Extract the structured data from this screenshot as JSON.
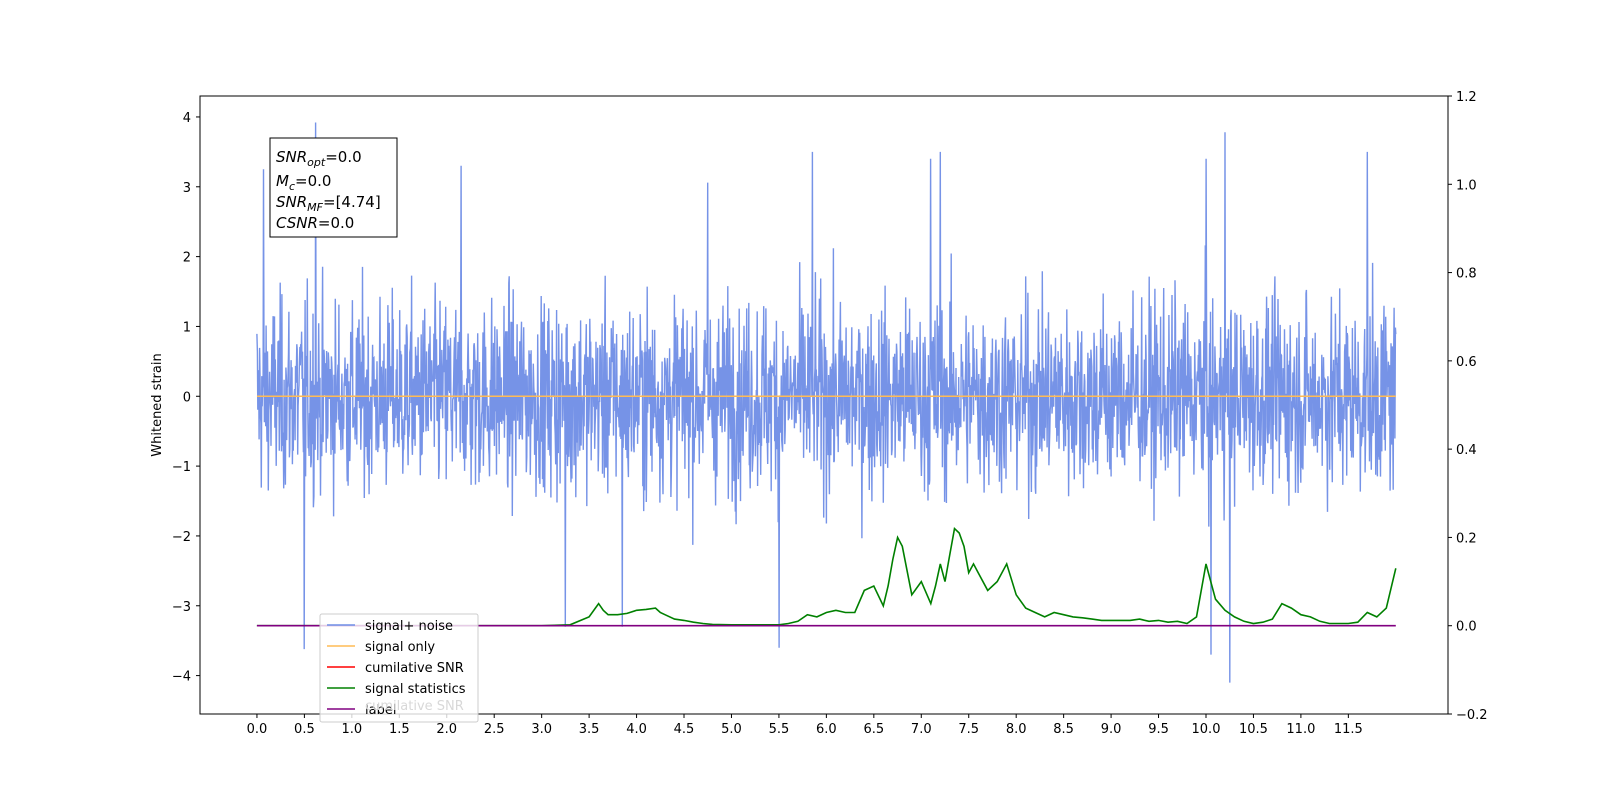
{
  "chart_data": {
    "type": "line",
    "ylabel": "Whitened strain",
    "xlim": [
      -0.6,
      12.55
    ],
    "ylim": [
      -4.55,
      4.3
    ],
    "ylim_right": [
      -0.2,
      1.2
    ],
    "x_ticks": [
      "0.0",
      "0.5",
      "1.0",
      "1.5",
      "2.0",
      "2.5",
      "3.0",
      "3.5",
      "4.0",
      "4.5",
      "5.0",
      "5.5",
      "6.0",
      "6.5",
      "7.0",
      "7.5",
      "8.0",
      "8.5",
      "9.0",
      "9.5",
      "10.0",
      "10.5",
      "11.0",
      "11.5"
    ],
    "y_ticks_left": [
      "4",
      "3",
      "2",
      "1",
      "0",
      "−1",
      "−2",
      "−3",
      "−4"
    ],
    "y_ticks_right": [
      "1.2",
      "1.0",
      "0.8",
      "0.6",
      "0.4",
      "0.2",
      "0.0",
      "−0.2"
    ],
    "stats_box": {
      "snr_opt_base": "SNR",
      "snr_opt_sub": "opt",
      "snr_opt_value": "=0.0",
      "mc_base": "M",
      "mc_sub": "c",
      "mc_value": "=0.0",
      "snr_mf_base": "SNR",
      "snr_mf_sub": "MF",
      "snr_mf_value": "=[4.74]",
      "csnr_base": "CSNR",
      "csnr_value": "=0.0"
    },
    "series": [
      {
        "name": "signal+ noise",
        "color": "#6f8de6",
        "axis": "left",
        "x_range": [
          0.0,
          12.0
        ],
        "peaks": [
          [
            0.07,
            3.25
          ],
          [
            0.5,
            -3.62
          ],
          [
            0.62,
            3.92
          ],
          [
            2.15,
            3.3
          ],
          [
            3.25,
            -3.3
          ],
          [
            3.85,
            -3.3
          ],
          [
            4.75,
            3.06
          ],
          [
            5.5,
            -3.6
          ],
          [
            5.85,
            3.5
          ],
          [
            7.2,
            3.5
          ],
          [
            7.1,
            3.4
          ],
          [
            10.0,
            3.4
          ],
          [
            10.05,
            -3.7
          ],
          [
            10.2,
            3.78
          ],
          [
            10.25,
            -4.1
          ],
          [
            11.7,
            3.5
          ]
        ]
      },
      {
        "name": "signal only",
        "color": "#ffbb55",
        "axis": "left",
        "x_range": [
          0.0,
          12.0
        ],
        "value": 0.0
      },
      {
        "name": "cumilative SNR",
        "color": "#ff0000",
        "axis": "right",
        "x": [],
        "y": []
      },
      {
        "name": "signal statistics",
        "color": "#008000",
        "axis": "right",
        "x": [
          0.0,
          0.5,
          1.0,
          1.5,
          2.0,
          2.5,
          3.0,
          3.3,
          3.5,
          3.6,
          3.65,
          3.7,
          3.8,
          3.9,
          4.0,
          4.1,
          4.2,
          4.25,
          4.3,
          4.4,
          4.5,
          4.6,
          4.7,
          4.8,
          5.0,
          5.5,
          5.6,
          5.7,
          5.8,
          5.9,
          6.0,
          6.1,
          6.2,
          6.3,
          6.4,
          6.5,
          6.6,
          6.65,
          6.7,
          6.75,
          6.8,
          6.9,
          7.0,
          7.1,
          7.15,
          7.2,
          7.25,
          7.3,
          7.35,
          7.4,
          7.45,
          7.5,
          7.55,
          7.6,
          7.7,
          7.8,
          7.9,
          8.0,
          8.1,
          8.2,
          8.3,
          8.4,
          8.5,
          8.6,
          8.7,
          8.8,
          8.9,
          9.0,
          9.2,
          9.3,
          9.4,
          9.5,
          9.6,
          9.7,
          9.8,
          9.9,
          10.0,
          10.1,
          10.2,
          10.3,
          10.4,
          10.5,
          10.6,
          10.7,
          10.8,
          10.9,
          11.0,
          11.1,
          11.2,
          11.3,
          11.5,
          11.6,
          11.7,
          11.8,
          11.9,
          12.0
        ],
        "y": [
          0.0,
          0.0,
          0.0,
          0.0,
          0.0,
          0.0,
          0.0,
          0.002,
          0.02,
          0.05,
          0.035,
          0.025,
          0.025,
          0.028,
          0.035,
          0.037,
          0.04,
          0.03,
          0.025,
          0.015,
          0.012,
          0.008,
          0.005,
          0.003,
          0.002,
          0.002,
          0.005,
          0.01,
          0.025,
          0.02,
          0.03,
          0.035,
          0.03,
          0.03,
          0.08,
          0.09,
          0.045,
          0.09,
          0.15,
          0.2,
          0.18,
          0.07,
          0.1,
          0.05,
          0.09,
          0.14,
          0.1,
          0.16,
          0.22,
          0.21,
          0.18,
          0.12,
          0.14,
          0.12,
          0.08,
          0.1,
          0.14,
          0.07,
          0.04,
          0.03,
          0.02,
          0.03,
          0.025,
          0.02,
          0.018,
          0.015,
          0.012,
          0.012,
          0.012,
          0.015,
          0.01,
          0.012,
          0.008,
          0.01,
          0.005,
          0.02,
          0.14,
          0.06,
          0.035,
          0.02,
          0.01,
          0.005,
          0.008,
          0.015,
          0.05,
          0.04,
          0.025,
          0.02,
          0.01,
          0.005,
          0.005,
          0.008,
          0.03,
          0.02,
          0.04,
          0.13
        ]
      },
      {
        "name": "label",
        "color": "#800080",
        "axis": "right",
        "x": [
          0.0,
          12.0
        ],
        "y": [
          0.0,
          0.0
        ]
      }
    ],
    "legend_overlay_text": "cumilative SNR",
    "legend_position": "lower left"
  }
}
